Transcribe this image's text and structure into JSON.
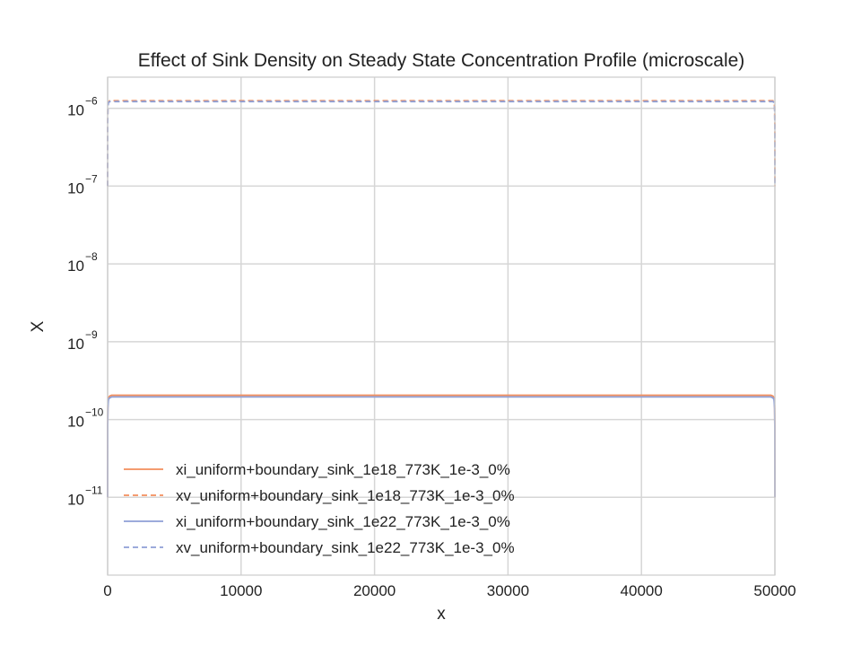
{
  "chart_data": {
    "type": "line",
    "title": "Effect of Sink Density on Steady State Concentration Profile (microscale)",
    "xlabel": "x",
    "ylabel": "X",
    "xlim": [
      0,
      50000
    ],
    "ylim_exponent": [
      -12,
      -5.6
    ],
    "y_scale": "log",
    "grid": true,
    "legend_location": "lower-left",
    "x_ticks": [
      {
        "value": 0,
        "label": "0"
      },
      {
        "value": 10000,
        "label": "10000"
      },
      {
        "value": 20000,
        "label": "20000"
      },
      {
        "value": 30000,
        "label": "30000"
      },
      {
        "value": 40000,
        "label": "40000"
      },
      {
        "value": 50000,
        "label": "50000"
      }
    ],
    "y_ticks": [
      {
        "exponent": -6,
        "base": "10",
        "power": "−6"
      },
      {
        "exponent": -7,
        "base": "10",
        "power": "−7"
      },
      {
        "exponent": -8,
        "base": "10",
        "power": "−8"
      },
      {
        "exponent": -9,
        "base": "10",
        "power": "−9"
      },
      {
        "exponent": -10,
        "base": "10",
        "power": "−10"
      },
      {
        "exponent": -11,
        "base": "10",
        "power": "−11"
      }
    ],
    "x": [
      0,
      5,
      20,
      60,
      150,
      300,
      500,
      25000,
      49500,
      49700,
      49850,
      49940,
      49980,
      49995,
      50000
    ],
    "series": [
      {
        "name": "xi_uniform+boundary_sink_1e18_773K_1e-3_0%",
        "color": "#f28e5c",
        "style": "solid",
        "values": [
          1e-11,
          8e-11,
          1.5e-10,
          1.9e-10,
          2e-10,
          2.05e-10,
          2.05e-10,
          2.05e-10,
          2.05e-10,
          2.05e-10,
          2e-10,
          1.9e-10,
          1.5e-10,
          8e-11,
          1e-11
        ]
      },
      {
        "name": "xv_uniform+boundary_sink_1e18_773K_1e-3_0%",
        "color": "#f28e5c",
        "style": "dashed",
        "values": [
          1e-07,
          6e-07,
          1.05e-06,
          1.2e-06,
          1.25e-06,
          1.25e-06,
          1.25e-06,
          1.25e-06,
          1.25e-06,
          1.25e-06,
          1.25e-06,
          1.2e-06,
          1.05e-06,
          6e-07,
          1e-07
        ]
      },
      {
        "name": "xi_uniform+boundary_sink_1e22_773K_1e-3_0%",
        "color": "#8e9fd6",
        "style": "solid",
        "values": [
          1e-11,
          8e-11,
          1.4e-10,
          1.8e-10,
          1.9e-10,
          1.95e-10,
          1.95e-10,
          1.95e-10,
          1.95e-10,
          1.95e-10,
          1.9e-10,
          1.8e-10,
          1.4e-10,
          8e-11,
          1e-11
        ]
      },
      {
        "name": "xv_uniform+boundary_sink_1e22_773K_1e-3_0%",
        "color": "#8e9fd6",
        "style": "dashed",
        "values": [
          1e-07,
          6e-07,
          1.02e-06,
          1.18e-06,
          1.22e-06,
          1.22e-06,
          1.22e-06,
          1.22e-06,
          1.22e-06,
          1.22e-06,
          1.22e-06,
          1.18e-06,
          1.02e-06,
          6e-07,
          1e-07
        ]
      }
    ]
  }
}
